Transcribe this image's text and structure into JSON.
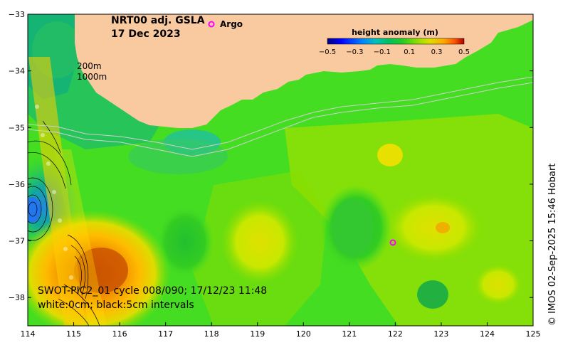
{
  "title": {
    "product": "NRT00 adj. GSLA",
    "date": "17 Dec 2023"
  },
  "legend": {
    "argo_marker": "o",
    "argo_label": "Argo",
    "depth_200": "200m",
    "depth_1000": "1000m"
  },
  "colorbar": {
    "title": "height anomaly (m)",
    "ticks": [
      "−0.5",
      "−0.3",
      "−0.1",
      "0.1",
      "0.3",
      "0.5"
    ],
    "colors": [
      "#00007f",
      "#0000ff",
      "#007fff",
      "#00bfbf",
      "#00c060",
      "#22cc22",
      "#88dd00",
      "#dddd00",
      "#ffaa00",
      "#ff5500",
      "#aa0000"
    ]
  },
  "axes": {
    "x_ticks": [
      "114",
      "115",
      "116",
      "117",
      "118",
      "119",
      "120",
      "121",
      "122",
      "123",
      "124",
      "125"
    ],
    "y_ticks": [
      "−33",
      "−34",
      "−35",
      "−36",
      "−37",
      "−38"
    ],
    "x_range": [
      114,
      125
    ],
    "y_range": [
      -33,
      -38.5
    ]
  },
  "swot": {
    "line1": "SWOT-PIC2_01 cycle 008/090; 17/12/23 11:48",
    "line2": "white:0cm; black:5cm intervals"
  },
  "credit": "© IMOS 02-Sep-2025 15:46 Hobart",
  "argo_float": {
    "lon": 121.95,
    "lat": -37.05
  },
  "colors": {
    "land": "#f9c9a0",
    "ocean_base": "#44dd22",
    "argo": "#ff00ff"
  }
}
